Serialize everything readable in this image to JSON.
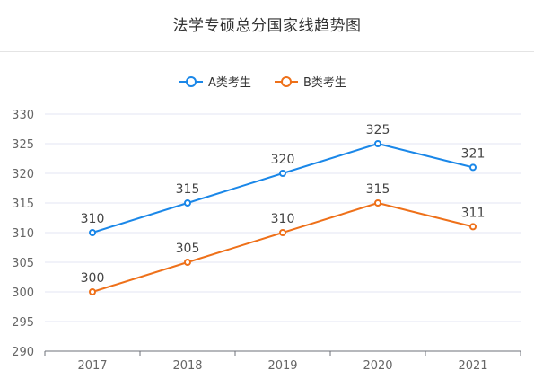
{
  "chart_data": {
    "type": "line",
    "title": "法学专硕总分国家线趋势图",
    "categories": [
      "2017",
      "2018",
      "2019",
      "2020",
      "2021"
    ],
    "series": [
      {
        "name": "A类考生",
        "color": "#1a87e8",
        "values": [
          310,
          315,
          320,
          325,
          321
        ]
      },
      {
        "name": "B类考生",
        "color": "#ee7019",
        "values": [
          300,
          305,
          310,
          315,
          311
        ]
      }
    ],
    "xlabel": "",
    "ylabel": "",
    "ylim": [
      290,
      330
    ],
    "y_ticks": [
      290,
      295,
      300,
      305,
      310,
      315,
      320,
      325,
      330
    ],
    "grid": true,
    "legend_position": "top-center",
    "data_labels": true
  }
}
